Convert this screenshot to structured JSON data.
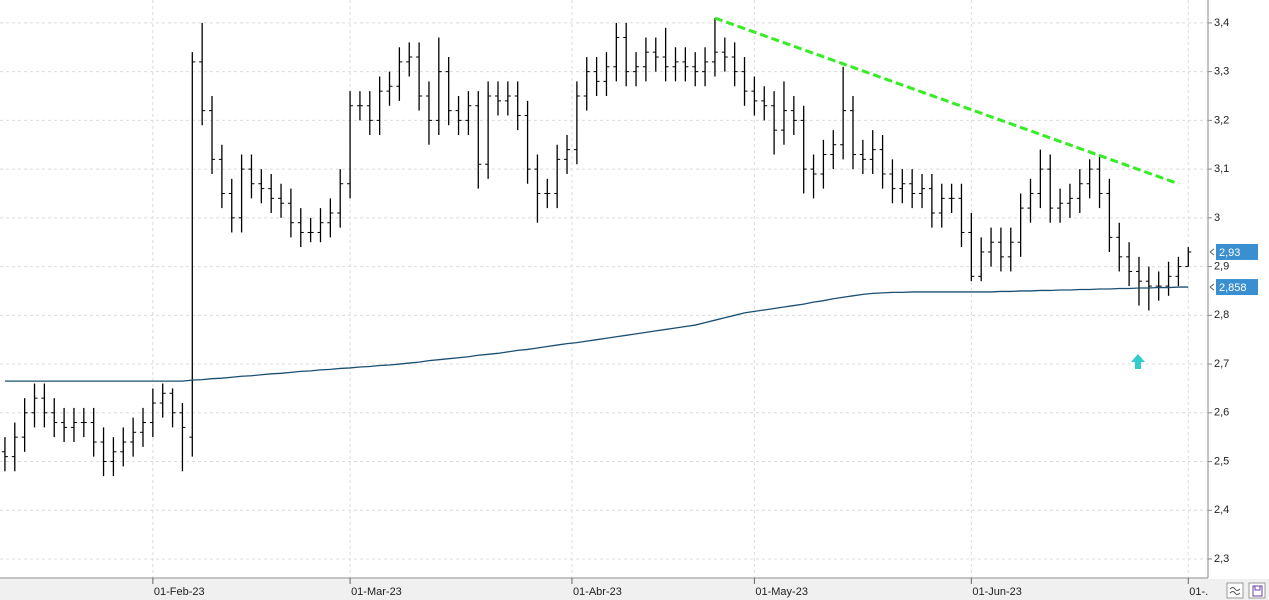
{
  "chart_data": {
    "type": "ohlc",
    "xlim": [
      -0.5,
      122
    ],
    "xticks": [
      {
        "value": 15,
        "label": "01-Feb-23"
      },
      {
        "value": 35,
        "label": "01-Mar-23"
      },
      {
        "value": 57.5,
        "label": "01-Abr-23"
      },
      {
        "value": 76,
        "label": "01-May-23"
      },
      {
        "value": 98,
        "label": "01-Jun-23"
      },
      {
        "value": 120,
        "label": "01-."
      }
    ],
    "ylim": [
      2.261,
      3.447
    ],
    "yticks": [
      {
        "value": 2.3,
        "label": "2,3"
      },
      {
        "value": 2.4,
        "label": "2,4"
      },
      {
        "value": 2.5,
        "label": "2,5"
      },
      {
        "value": 2.6,
        "label": "2,6"
      },
      {
        "value": 2.7,
        "label": "2,7"
      },
      {
        "value": 2.8,
        "label": "2,8"
      },
      {
        "value": 2.9,
        "label": "2,9"
      },
      3,
      {
        "value": 3.1,
        "label": "3,1"
      },
      {
        "value": 3.2,
        "label": "3,2"
      },
      {
        "value": 3.3,
        "label": "3,3"
      },
      {
        "value": 3.4,
        "label": "3,4"
      }
    ],
    "grid": true,
    "color": "#000000",
    "open": [
      2.52,
      2.51,
      2.55,
      2.6,
      2.63,
      2.6,
      2.58,
      2.57,
      2.58,
      2.58,
      2.54,
      2.5,
      2.52,
      2.54,
      2.56,
      2.58,
      2.62,
      2.64,
      2.6,
      2.55,
      3.32,
      3.22,
      3.12,
      3.05,
      3.0,
      3.1,
      3.07,
      3.06,
      3.04,
      3.03,
      2.99,
      2.97,
      2.97,
      2.99,
      3.01,
      3.07,
      3.23,
      3.23,
      3.2,
      3.26,
      3.27,
      3.32,
      3.33,
      3.25,
      3.2,
      3.3,
      3.22,
      3.2,
      3.23,
      3.11,
      3.25,
      3.24,
      3.25,
      3.21,
      3.1,
      3.05,
      3.05,
      3.12,
      3.14,
      3.25,
      3.3,
      3.28,
      3.31,
      3.37,
      3.3,
      3.31,
      3.34,
      3.33,
      3.31,
      3.32,
      3.31,
      3.3,
      3.32,
      3.34,
      3.33,
      3.3,
      3.26,
      3.24,
      3.23,
      3.18,
      3.22,
      3.2,
      3.1,
      3.09,
      3.13,
      3.15,
      3.22,
      3.13,
      3.12,
      3.14,
      3.09,
      3.06,
      3.07,
      3.05,
      3.06,
      3.01,
      3.04,
      3.04,
      2.97,
      2.88,
      2.93,
      2.95,
      2.92,
      2.95,
      3.02,
      3.05,
      3.1,
      3.02,
      3.03,
      3.04,
      3.07,
      3.1,
      3.05,
      2.96,
      2.92,
      2.89,
      2.87,
      2.86,
      2.86,
      2.88,
      2.9
    ],
    "high": [
      2.55,
      2.58,
      2.63,
      2.66,
      2.66,
      2.63,
      2.61,
      2.61,
      2.61,
      2.61,
      2.57,
      2.55,
      2.57,
      2.59,
      2.61,
      2.65,
      2.66,
      2.65,
      2.62,
      3.34,
      3.4,
      3.25,
      3.15,
      3.08,
      3.13,
      3.13,
      3.1,
      3.09,
      3.07,
      3.06,
      3.02,
      3.0,
      3.02,
      3.04,
      3.1,
      3.26,
      3.26,
      3.26,
      3.29,
      3.3,
      3.35,
      3.36,
      3.36,
      3.28,
      3.37,
      3.33,
      3.25,
      3.26,
      3.26,
      3.28,
      3.28,
      3.28,
      3.28,
      3.24,
      3.13,
      3.08,
      3.15,
      3.17,
      3.28,
      3.33,
      3.33,
      3.34,
      3.4,
      3.4,
      3.34,
      3.37,
      3.37,
      3.39,
      3.35,
      3.35,
      3.34,
      3.35,
      3.41,
      3.37,
      3.36,
      3.33,
      3.29,
      3.27,
      3.26,
      3.28,
      3.25,
      3.23,
      3.13,
      3.16,
      3.18,
      3.31,
      3.25,
      3.16,
      3.18,
      3.17,
      3.12,
      3.1,
      3.1,
      3.09,
      3.09,
      3.07,
      3.07,
      3.07,
      3.01,
      2.96,
      2.98,
      2.98,
      2.98,
      3.05,
      3.08,
      3.14,
      3.13,
      3.06,
      3.07,
      3.1,
      3.12,
      3.13,
      3.08,
      2.99,
      2.95,
      2.92,
      2.9,
      2.89,
      2.91,
      2.92,
      2.94
    ],
    "low": [
      2.48,
      2.48,
      2.52,
      2.57,
      2.57,
      2.55,
      2.54,
      2.54,
      2.55,
      2.51,
      2.47,
      2.47,
      2.49,
      2.51,
      2.53,
      2.55,
      2.59,
      2.57,
      2.48,
      2.51,
      3.19,
      3.09,
      3.02,
      2.97,
      2.97,
      3.04,
      3.03,
      3.01,
      3.0,
      2.96,
      2.94,
      2.95,
      2.95,
      2.96,
      2.98,
      3.04,
      3.2,
      3.17,
      3.17,
      3.23,
      3.24,
      3.29,
      3.22,
      3.15,
      3.17,
      3.19,
      3.17,
      3.17,
      3.06,
      3.08,
      3.21,
      3.21,
      3.18,
      3.07,
      2.99,
      3.02,
      3.02,
      3.09,
      3.11,
      3.22,
      3.25,
      3.25,
      3.28,
      3.27,
      3.27,
      3.28,
      3.3,
      3.28,
      3.28,
      3.28,
      3.27,
      3.27,
      3.29,
      3.3,
      3.27,
      3.23,
      3.21,
      3.2,
      3.13,
      3.15,
      3.17,
      3.05,
      3.04,
      3.06,
      3.1,
      3.12,
      3.1,
      3.09,
      3.09,
      3.06,
      3.03,
      3.03,
      3.02,
      3.02,
      2.98,
      2.98,
      3.01,
      2.94,
      2.87,
      2.87,
      2.9,
      2.89,
      2.89,
      2.92,
      2.99,
      3.02,
      2.99,
      2.99,
      3.0,
      3.01,
      3.04,
      3.02,
      2.93,
      2.89,
      2.86,
      2.82,
      2.81,
      2.83,
      2.84,
      2.86,
      2.9
    ],
    "close": [
      2.51,
      2.55,
      2.6,
      2.63,
      2.6,
      2.58,
      2.57,
      2.58,
      2.58,
      2.54,
      2.5,
      2.52,
      2.54,
      2.56,
      2.58,
      2.62,
      2.64,
      2.6,
      2.57,
      3.32,
      3.22,
      3.12,
      3.05,
      3.0,
      3.1,
      3.07,
      3.06,
      3.04,
      3.03,
      2.99,
      2.97,
      2.97,
      2.99,
      3.01,
      3.07,
      3.23,
      3.23,
      3.2,
      3.26,
      3.27,
      3.32,
      3.33,
      3.25,
      3.2,
      3.3,
      3.22,
      3.2,
      3.23,
      3.11,
      3.25,
      3.24,
      3.25,
      3.21,
      3.1,
      3.05,
      3.05,
      3.12,
      3.14,
      3.25,
      3.3,
      3.28,
      3.31,
      3.37,
      3.3,
      3.31,
      3.34,
      3.33,
      3.31,
      3.32,
      3.31,
      3.3,
      3.32,
      3.34,
      3.33,
      3.3,
      3.26,
      3.24,
      3.23,
      3.18,
      3.22,
      3.2,
      3.1,
      3.09,
      3.13,
      3.15,
      3.22,
      3.13,
      3.12,
      3.14,
      3.09,
      3.06,
      3.07,
      3.05,
      3.06,
      3.01,
      3.04,
      3.04,
      2.97,
      2.88,
      2.93,
      2.95,
      2.92,
      2.95,
      3.02,
      3.05,
      3.1,
      3.02,
      3.03,
      3.04,
      3.07,
      3.1,
      3.05,
      2.96,
      2.92,
      2.89,
      2.87,
      2.86,
      2.86,
      2.88,
      2.9,
      2.93
    ],
    "moving_average": {
      "color": "#1b4f72",
      "values": [
        2.665,
        2.665,
        2.665,
        2.665,
        2.665,
        2.665,
        2.665,
        2.665,
        2.665,
        2.665,
        2.665,
        2.665,
        2.665,
        2.665,
        2.665,
        2.665,
        2.665,
        2.665,
        2.665,
        2.667,
        2.668,
        2.67,
        2.671,
        2.673,
        2.675,
        2.676,
        2.678,
        2.68,
        2.681,
        2.683,
        2.685,
        2.686,
        2.688,
        2.689,
        2.691,
        2.692,
        2.694,
        2.695,
        2.697,
        2.698,
        2.7,
        2.702,
        2.704,
        2.707,
        2.709,
        2.711,
        2.713,
        2.715,
        2.718,
        2.72,
        2.722,
        2.725,
        2.728,
        2.73,
        2.733,
        2.736,
        2.739,
        2.742,
        2.744,
        2.747,
        2.75,
        2.753,
        2.756,
        2.759,
        2.762,
        2.765,
        2.768,
        2.771,
        2.774,
        2.777,
        2.78,
        2.785,
        2.79,
        2.795,
        2.8,
        2.805,
        2.808,
        2.811,
        2.814,
        2.817,
        2.82,
        2.823,
        2.827,
        2.83,
        2.834,
        2.837,
        2.84,
        2.843,
        2.845,
        2.846,
        2.847,
        2.847,
        2.848,
        2.848,
        2.848,
        2.848,
        2.848,
        2.848,
        2.848,
        2.848,
        2.848,
        2.849,
        2.849,
        2.85,
        2.85,
        2.851,
        2.851,
        2.852,
        2.852,
        2.853,
        2.853,
        2.854,
        2.854,
        2.855,
        2.855,
        2.856,
        2.856,
        2.857,
        2.857,
        2.858,
        2.858
      ]
    },
    "trendline": {
      "color": "#33ee22",
      "x": [
        72,
        119
      ],
      "y": [
        3.41,
        3.07
      ]
    },
    "last_price": {
      "value": 2.93,
      "label": "2,93"
    },
    "ma_last": {
      "value": 2.858,
      "label": "2,858"
    },
    "label_color": "#3a8fd0"
  }
}
